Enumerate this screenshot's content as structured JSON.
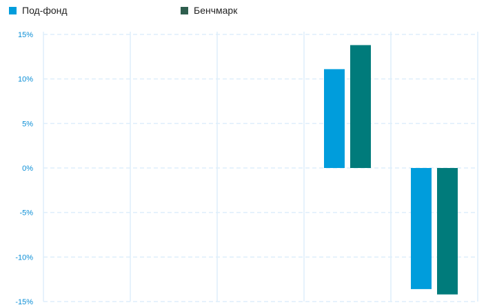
{
  "legend": {
    "items": [
      {
        "label": "Под-фонд",
        "color": "#009ddc"
      },
      {
        "label": "Бенчмарк",
        "color": "#2e5e4e"
      }
    ]
  },
  "colors": {
    "grid": "#ddeefb",
    "tick_text": "#0a8ed6"
  },
  "chart_data": {
    "type": "bar",
    "categories": [
      "",
      "",
      "",
      "",
      ""
    ],
    "series": [
      {
        "name": "Под-фонд",
        "color": "#009ddc",
        "values": [
          null,
          null,
          null,
          11.1,
          -13.6
        ]
      },
      {
        "name": "Бенчмарк",
        "color": "#007b7b",
        "values": [
          null,
          null,
          null,
          13.8,
          -14.2
        ]
      }
    ],
    "yticks": [
      "15%",
      "10%",
      "5%",
      "0%",
      "-5%",
      "-10%",
      "-15%"
    ],
    "ytick_values": [
      15,
      10,
      5,
      0,
      -5,
      -10,
      -15
    ],
    "ylim": [
      -15,
      15
    ],
    "title": "",
    "xlabel": "",
    "ylabel": "",
    "grid": true,
    "legend_position": "top-left"
  }
}
